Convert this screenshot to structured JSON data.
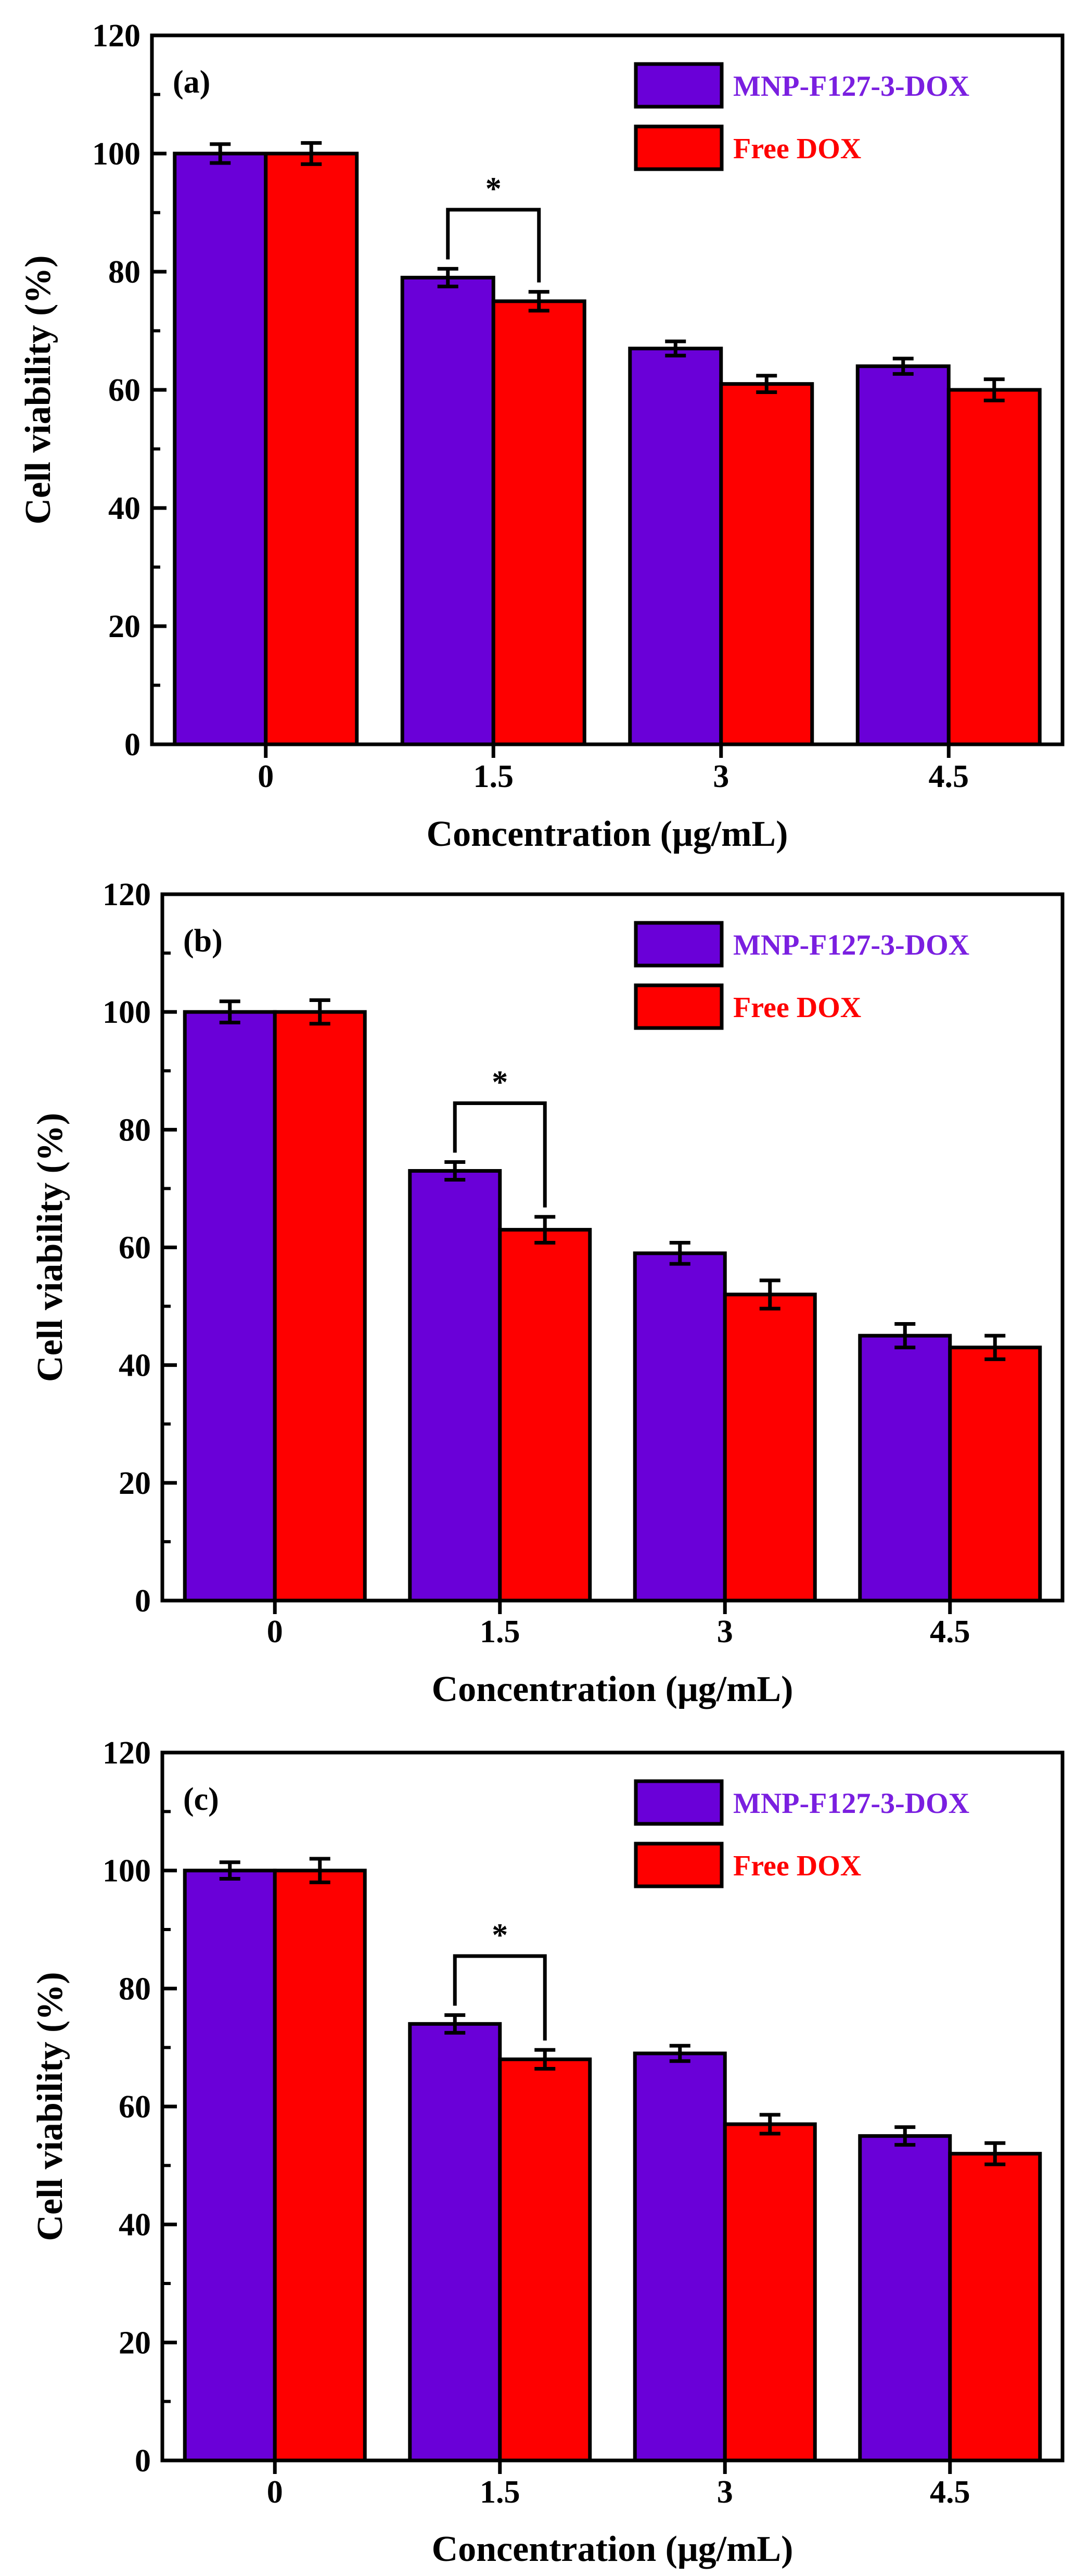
{
  "figure": {
    "series_names": [
      "MNP-F127-3-DOX",
      "Free DOX"
    ],
    "colors": {
      "MNP-F127-3-DOX": "#6a00d8",
      "Free DOX": "#fe0000",
      "legend_text_series1": "#7a1fe0",
      "legend_text_series2": "#ff0000"
    }
  },
  "chart_data": [
    {
      "type": "bar",
      "panel_label": "(a)",
      "title": "",
      "xlabel": "Concentration (μg/mL)",
      "ylabel": "Cell viability (%)",
      "ylim": [
        0,
        120
      ],
      "yticks": [
        "0",
        "20",
        "40",
        "60",
        "80",
        "100",
        "120"
      ],
      "categories": [
        "0",
        "1.5",
        "3",
        "4.5"
      ],
      "series": [
        {
          "name": "MNP-F127-3-DOX",
          "values": [
            100,
            79,
            67,
            64
          ],
          "errors": [
            1.6,
            1.5,
            1.2,
            1.3
          ]
        },
        {
          "name": "Free DOX",
          "values": [
            100,
            75,
            61,
            60
          ],
          "errors": [
            1.8,
            1.6,
            1.4,
            1.8
          ]
        }
      ],
      "significance": {
        "category": "1.5",
        "label": "*"
      },
      "legend": "top-right"
    },
    {
      "type": "bar",
      "panel_label": "(b)",
      "title": "",
      "xlabel": "Concentration (μg/mL)",
      "ylabel": "Cell viability (%)",
      "ylim": [
        0,
        120
      ],
      "yticks": [
        "0",
        "20",
        "40",
        "60",
        "80",
        "100",
        "120"
      ],
      "categories": [
        "0",
        "1.5",
        "3",
        "4.5"
      ],
      "series": [
        {
          "name": "MNP-F127-3-DOX",
          "values": [
            100,
            73,
            59,
            45
          ],
          "errors": [
            1.8,
            1.5,
            1.8,
            2.0
          ]
        },
        {
          "name": "Free DOX",
          "values": [
            100,
            63,
            52,
            43
          ],
          "errors": [
            2.0,
            2.2,
            2.4,
            2.0
          ]
        }
      ],
      "significance": {
        "category": "1.5",
        "label": "*"
      },
      "legend": "top-right"
    },
    {
      "type": "bar",
      "panel_label": "(c)",
      "title": "",
      "xlabel": "Concentration (μg/mL)",
      "ylabel": "Cell viability (%)",
      "ylim": [
        0,
        120
      ],
      "yticks": [
        "0",
        "20",
        "40",
        "60",
        "80",
        "100",
        "120"
      ],
      "categories": [
        "0",
        "1.5",
        "3",
        "4.5"
      ],
      "series": [
        {
          "name": "MNP-F127-3-DOX",
          "values": [
            100,
            74,
            69,
            55
          ],
          "errors": [
            1.4,
            1.5,
            1.3,
            1.5
          ]
        },
        {
          "name": "Free DOX",
          "values": [
            100,
            68,
            57,
            52
          ],
          "errors": [
            2.0,
            1.6,
            1.6,
            1.8
          ]
        }
      ],
      "significance": {
        "category": "1.5",
        "label": "*"
      },
      "legend": "top-right"
    }
  ]
}
